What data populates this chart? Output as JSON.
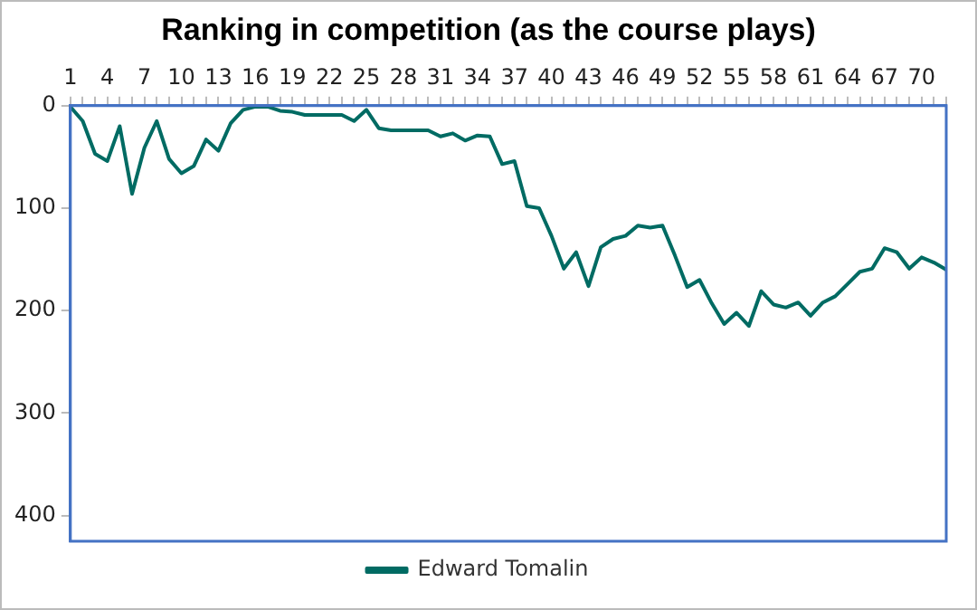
{
  "chart_data": {
    "type": "line",
    "title": "Ranking in competition (as the course plays)",
    "categories": [
      "1",
      null,
      null,
      "4",
      null,
      null,
      "7",
      null,
      null,
      "10",
      null,
      null,
      "13",
      null,
      null,
      "16",
      null,
      null,
      "19",
      null,
      null,
      "22",
      null,
      null,
      "25",
      null,
      null,
      "28",
      null,
      null,
      "31",
      null,
      null,
      "34",
      null,
      null,
      "37",
      null,
      null,
      "40",
      null,
      null,
      "43",
      null,
      null,
      "46",
      null,
      null,
      "49",
      null,
      null,
      "52",
      null,
      null,
      "55",
      null,
      null,
      "58",
      null,
      null,
      "61",
      null,
      null,
      "64",
      null,
      null,
      "67",
      null,
      null,
      "70",
      null,
      null
    ],
    "series": [
      {
        "name": "Edward Tomalin",
        "color": "#006b63",
        "values": [
          1,
          15,
          47,
          54,
          20,
          86,
          41,
          15,
          52,
          66,
          59,
          33,
          44,
          17,
          4,
          1,
          1,
          5,
          6,
          9,
          9,
          9,
          9,
          15,
          4,
          22,
          24,
          24,
          24,
          24,
          30,
          27,
          34,
          29,
          30,
          57,
          54,
          98,
          100,
          127,
          159,
          143,
          176,
          138,
          130,
          127,
          117,
          119,
          117,
          146,
          177,
          170,
          193,
          213,
          202,
          215,
          181,
          194,
          197,
          192,
          205,
          192,
          186,
          174,
          162,
          159,
          139,
          143,
          159,
          148,
          153,
          160
        ]
      }
    ],
    "ylim": [
      425,
      0
    ],
    "yticks": [
      0,
      100,
      200,
      300,
      400
    ],
    "grid": false,
    "legend": "bottom",
    "marker": "none",
    "line_style": "solid"
  }
}
